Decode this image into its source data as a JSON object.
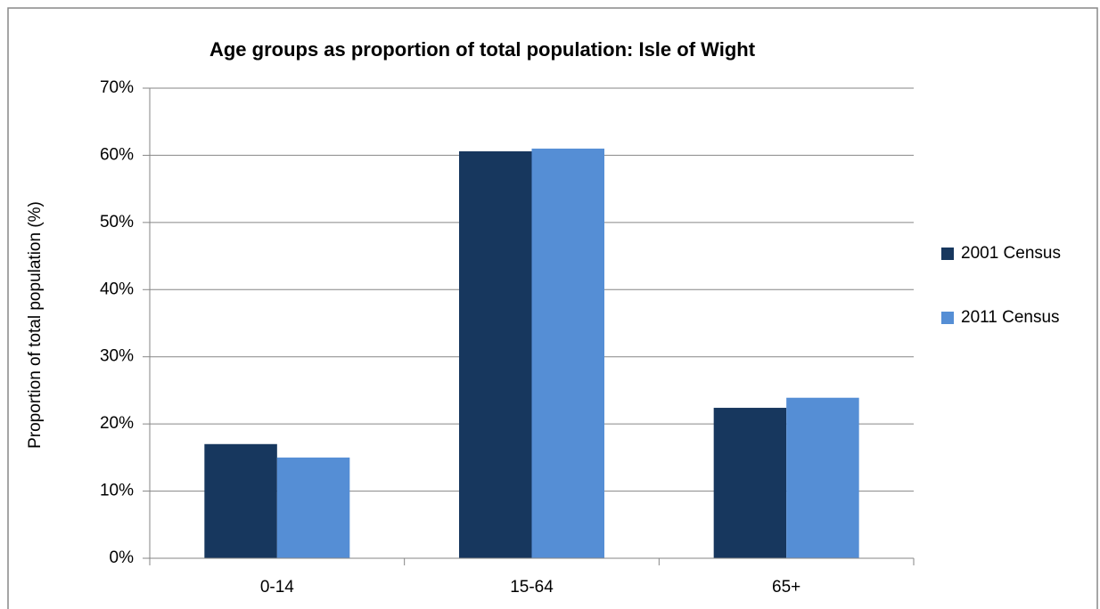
{
  "chart_data": {
    "type": "bar",
    "title": "Age groups as proportion of total population: Isle of Wight",
    "y_label": "Proportion of total population (%)",
    "categories": [
      "0-14",
      "15-64",
      "65+"
    ],
    "series": [
      {
        "name": "2001 Census",
        "color": "#17375e",
        "values": [
          17.0,
          60.6,
          22.4
        ]
      },
      {
        "name": "2011 Census",
        "color": "#558ed5",
        "values": [
          15.0,
          61.0,
          23.9
        ]
      }
    ],
    "ylim": [
      0,
      70
    ],
    "yticks": [
      {
        "value": 0,
        "label": "0%"
      },
      {
        "value": 10,
        "label": "10%"
      },
      {
        "value": 20,
        "label": "20%"
      },
      {
        "value": 30,
        "label": "30%"
      },
      {
        "value": 40,
        "label": "40%"
      },
      {
        "value": 50,
        "label": "50%"
      },
      {
        "value": 60,
        "label": "60%"
      },
      {
        "value": 70,
        "label": "70%"
      }
    ],
    "grid": true,
    "legend": "right"
  }
}
